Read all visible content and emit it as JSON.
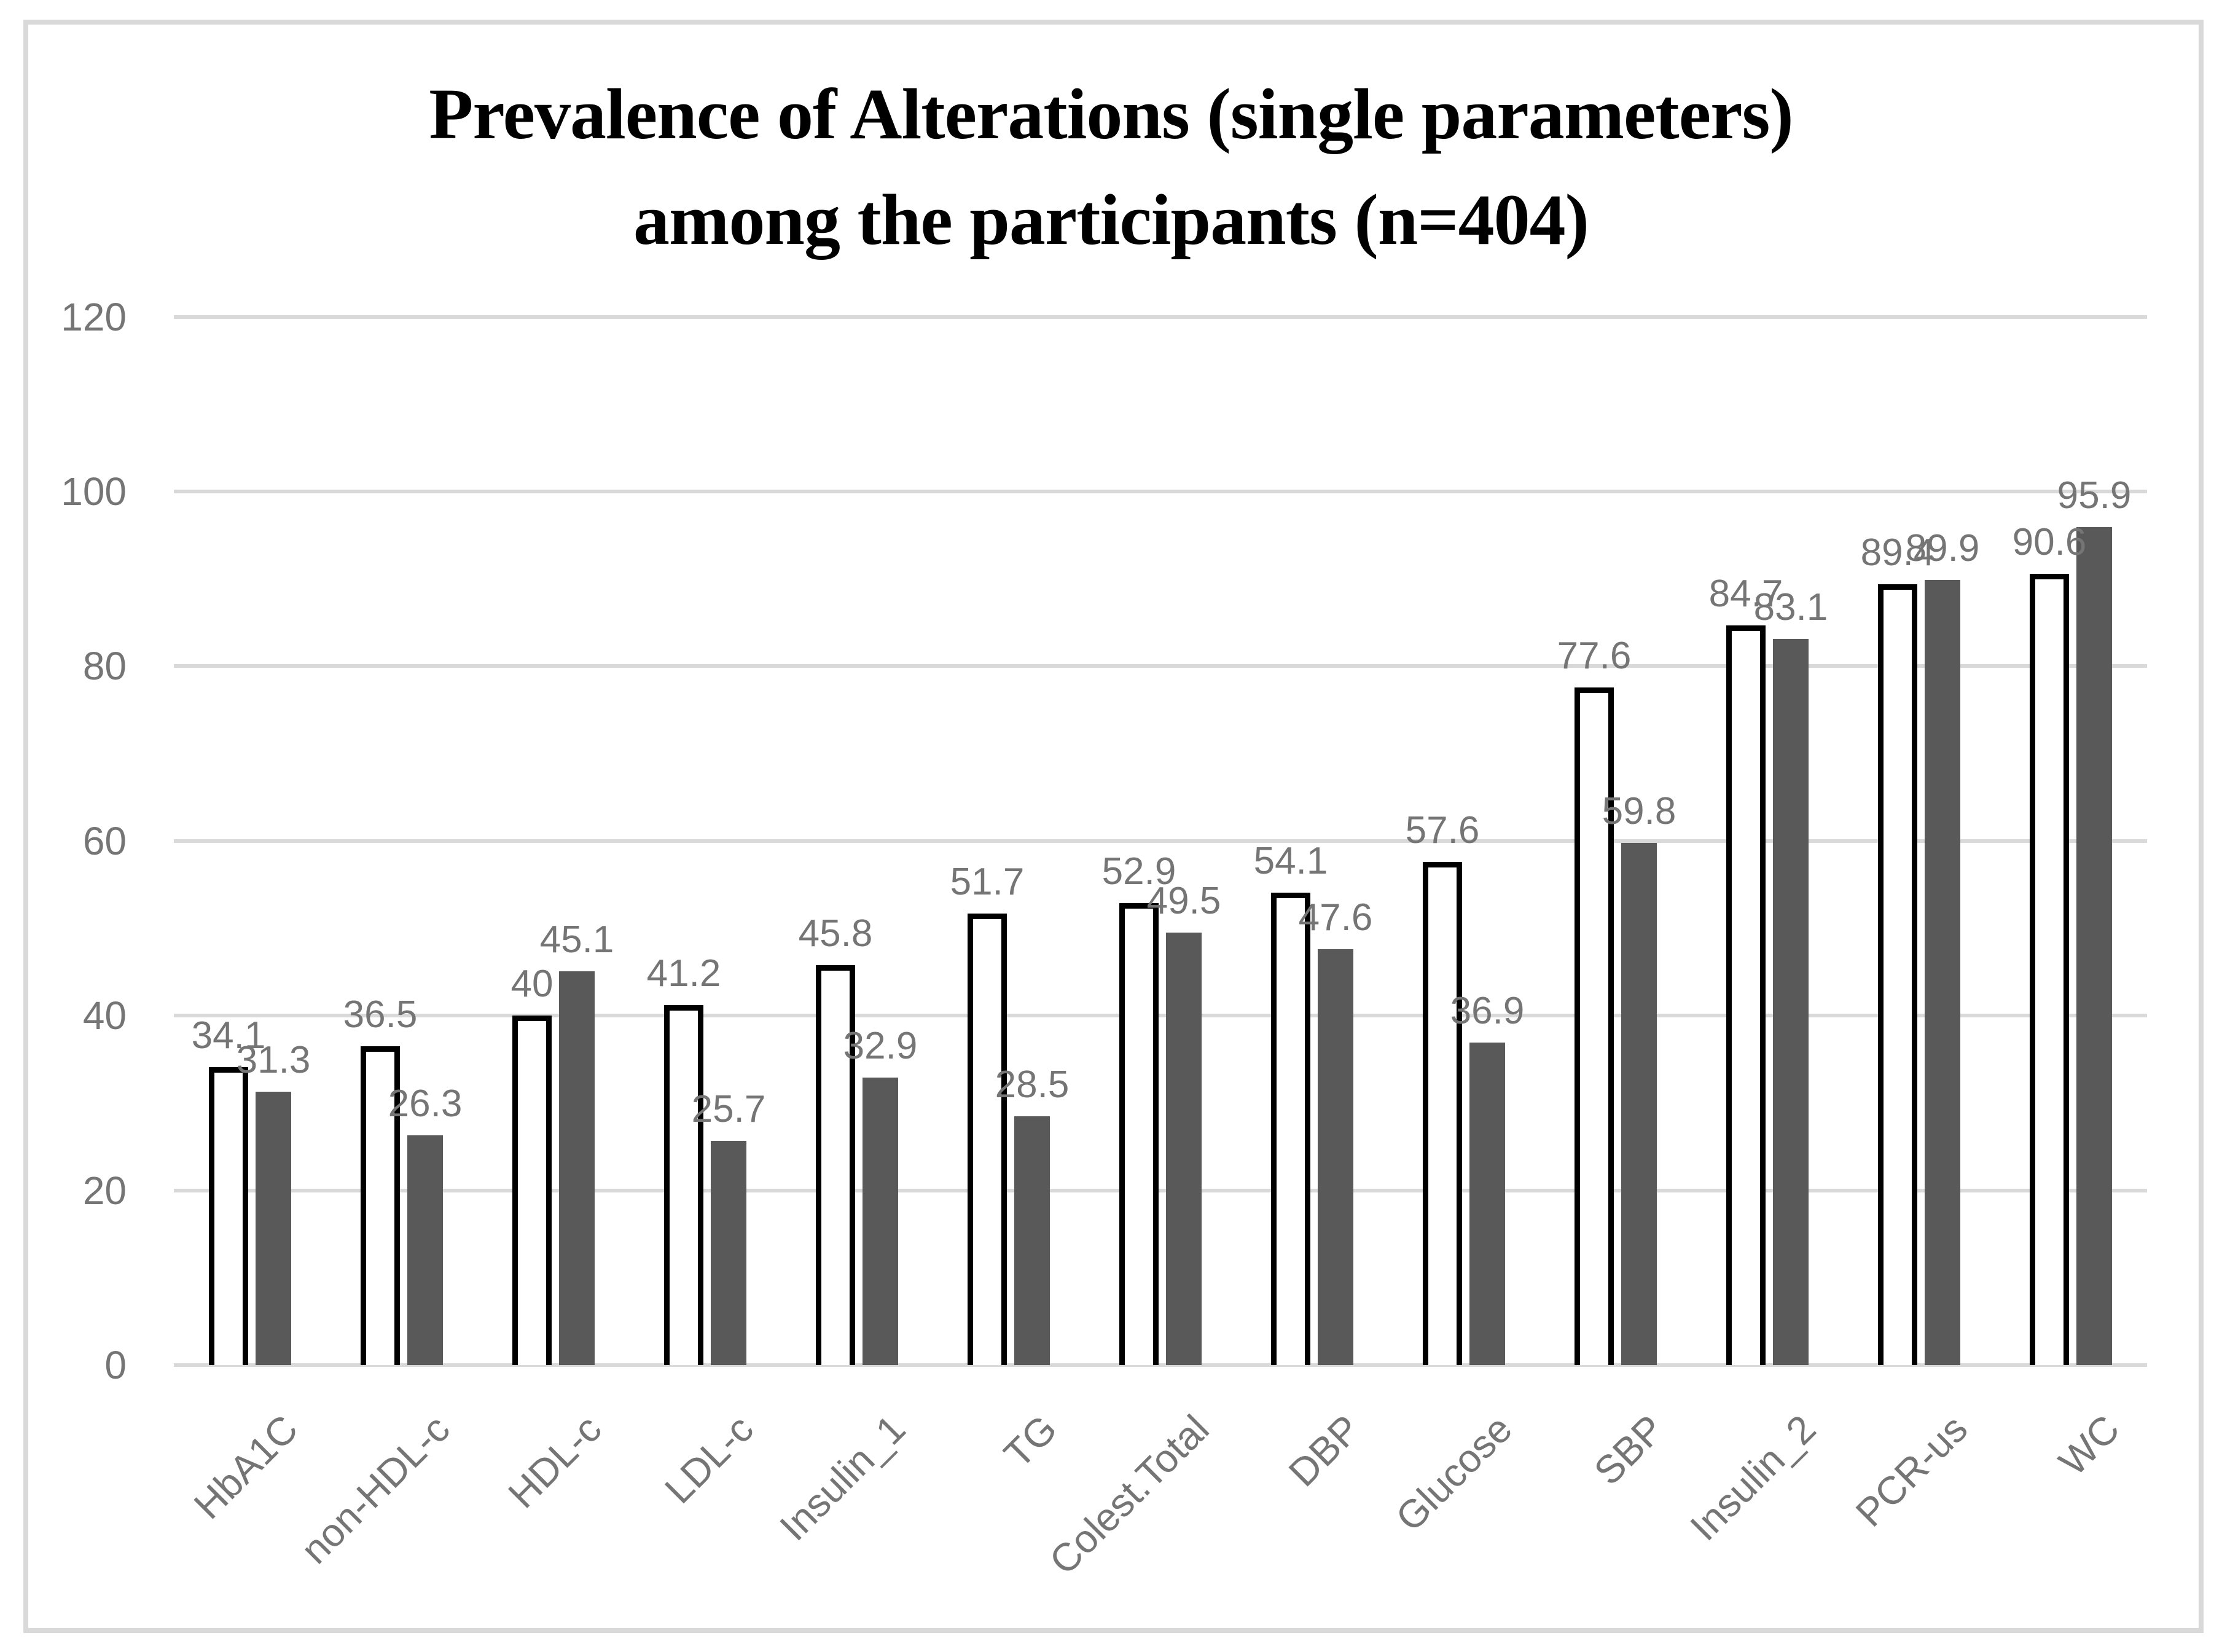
{
  "chart_data": {
    "type": "bar",
    "title_lines": [
      "Prevalence of Alterations (single parameters)",
      "among the participants (n=404)"
    ],
    "categories": [
      "HbA1C",
      "non-HDL-c",
      "HDL-c",
      "LDL-c",
      "Insulin_1",
      "TG",
      "Colest.Total",
      "DBP",
      "Glucose",
      "SBP",
      "Insulin_2",
      "PCR-us",
      "WC"
    ],
    "series": [
      {
        "name": "white-outlined-bars",
        "values": [
          34.1,
          36.5,
          40,
          41.2,
          45.8,
          51.7,
          52.9,
          54.1,
          57.6,
          77.6,
          84.7,
          89.4,
          90.6
        ]
      },
      {
        "name": "dark-gray-bars",
        "values": [
          31.3,
          26.3,
          45.1,
          25.7,
          32.9,
          28.5,
          49.5,
          47.6,
          36.9,
          59.8,
          83.1,
          89.9,
          95.9
        ]
      }
    ],
    "y_ticks": [
      0,
      20,
      40,
      60,
      80,
      100,
      120
    ],
    "ylim": [
      0,
      120
    ],
    "grid": true,
    "legend": false,
    "data_labels": true,
    "colors": {
      "series1_fill": "#ffffff",
      "series1_border": "#000000",
      "series2_fill": "#595959",
      "gridline": "#d9d9d9",
      "labels": "#757575",
      "title": "#000000",
      "frame_border": "#d9d9d9"
    }
  }
}
